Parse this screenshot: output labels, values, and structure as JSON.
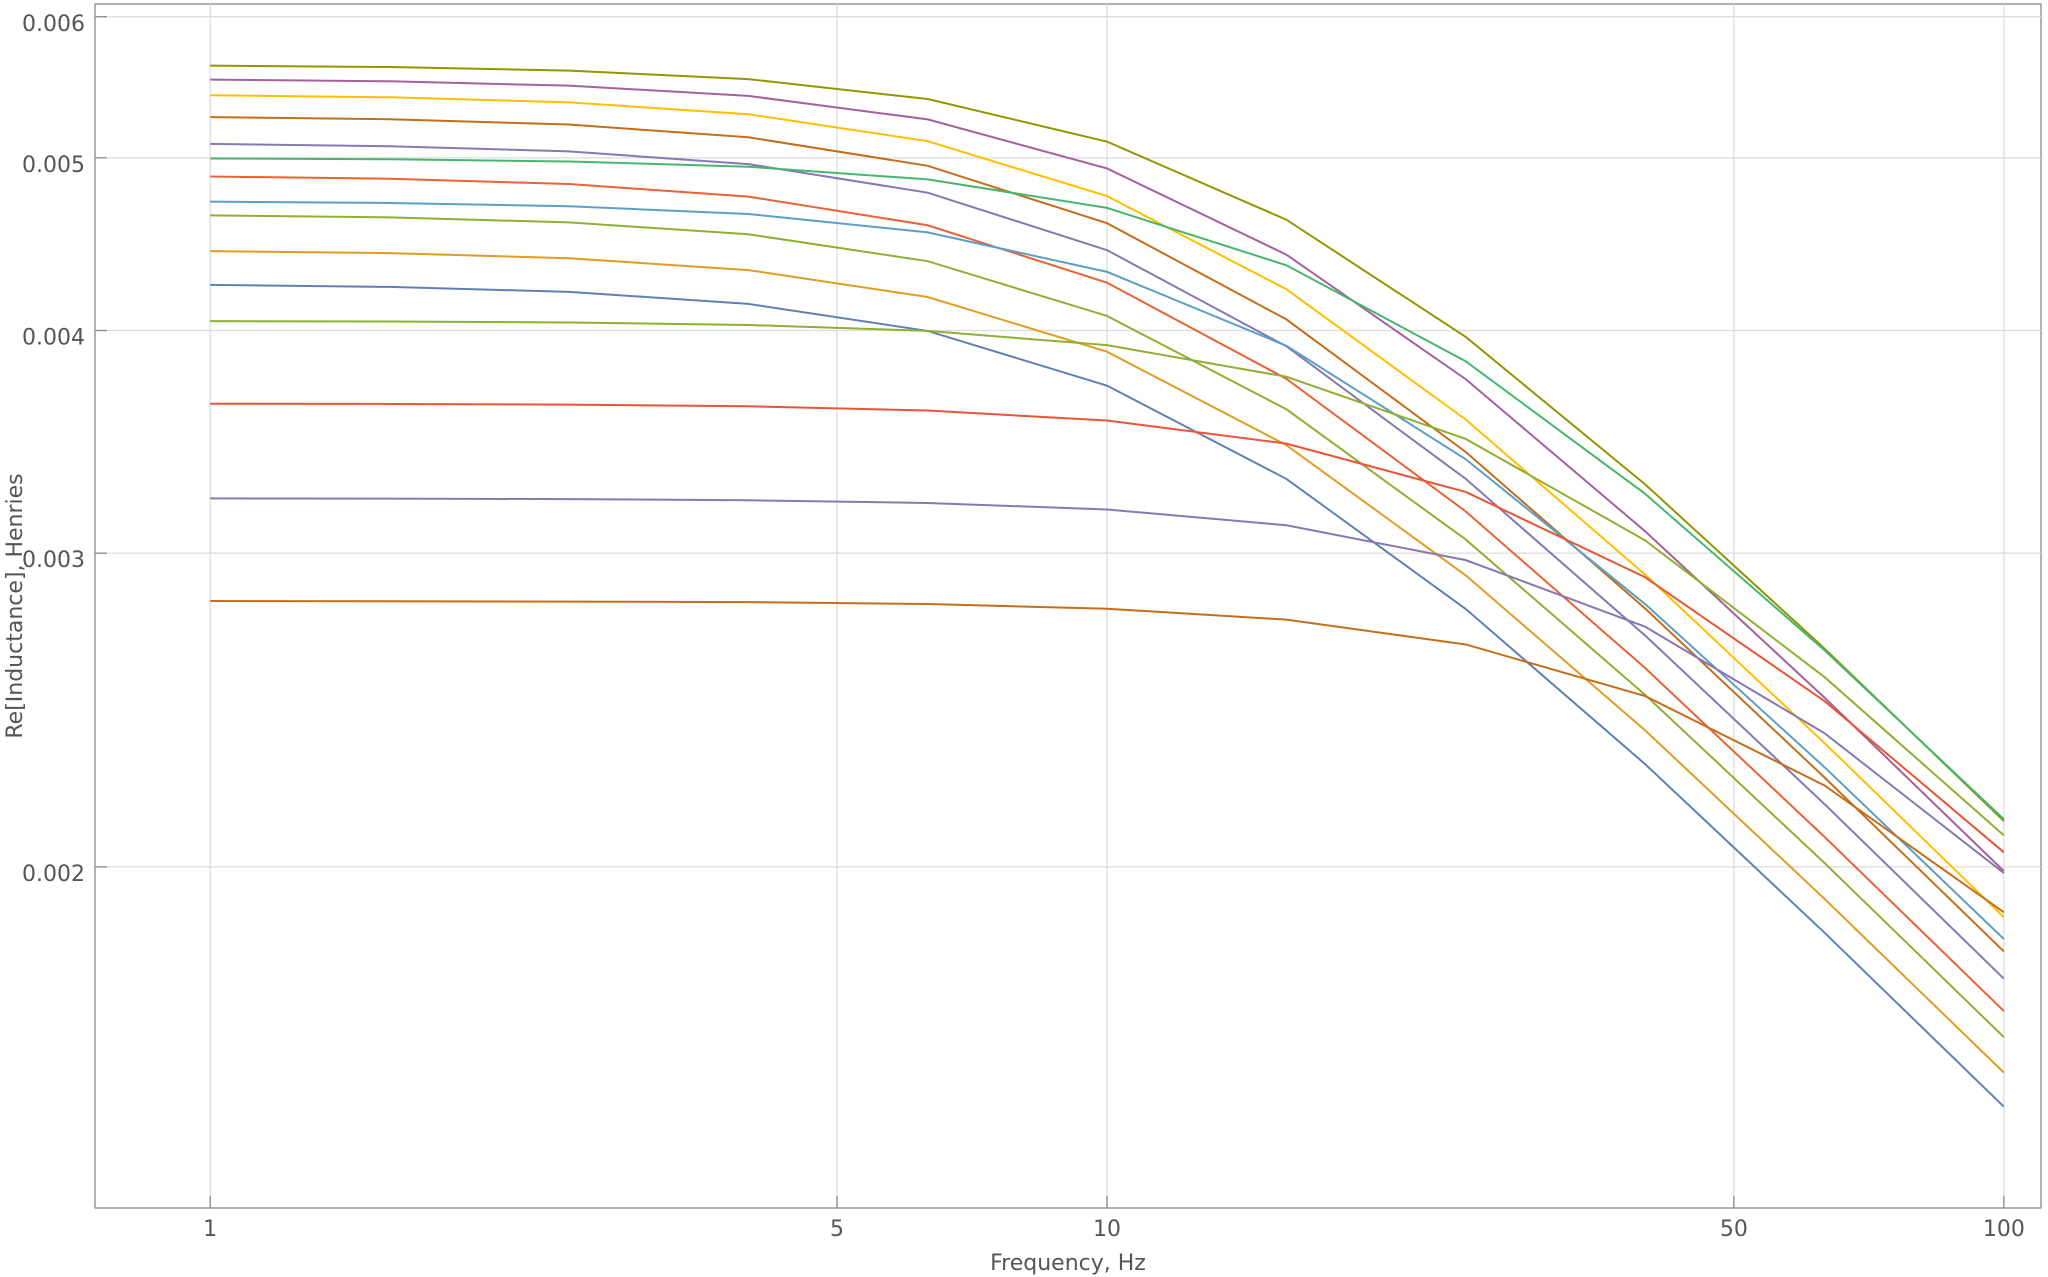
{
  "chart_data": {
    "type": "line",
    "xlabel": "Frequency, Hz",
    "ylabel": "Re[Inductance], Henries",
    "xscale": "log",
    "yscale": "log",
    "grid": true,
    "xlim": [
      0.744,
      110
    ],
    "ylim": [
      0.001287,
      0.0061
    ],
    "xticks": [
      1,
      5,
      10,
      50,
      100
    ],
    "yticks": [
      0.002,
      0.003,
      0.004,
      0.005,
      0.006
    ],
    "x": [
      1,
      1.585,
      2.512,
      3.981,
      6.31,
      10,
      15.85,
      25.12,
      39.81,
      63.1,
      100
    ],
    "series": [
      {
        "color": "#5E81B5",
        "values": [
          0.004243,
          0.004232,
          0.004205,
          0.00414,
          0.003998,
          0.003725,
          0.003302,
          0.002791,
          0.002284,
          0.001837,
          0.001467
        ]
      },
      {
        "color": "#E19C24",
        "values": [
          0.004432,
          0.004421,
          0.004392,
          0.004325,
          0.004177,
          0.003892,
          0.003449,
          0.002915,
          0.002386,
          0.001919,
          0.001533
        ]
      },
      {
        "color": "#8FB032",
        "values": [
          0.004642,
          0.00463,
          0.0046,
          0.00453,
          0.004375,
          0.004076,
          0.003613,
          0.003053,
          0.002498,
          0.00201,
          0.001605
        ]
      },
      {
        "color": "#EB6235",
        "values": [
          0.004881,
          0.004867,
          0.004834,
          0.004756,
          0.004583,
          0.004255,
          0.003758,
          0.003166,
          0.002586,
          0.002079,
          0.00166
        ]
      },
      {
        "color": "#8778B3",
        "values": [
          0.005091,
          0.005076,
          0.005042,
          0.00496,
          0.00478,
          0.004438,
          0.003919,
          0.003302,
          0.002697,
          0.002169,
          0.001731
        ]
      },
      {
        "color": "#C56E1A",
        "values": [
          0.00527,
          0.005256,
          0.00522,
          0.005135,
          0.004949,
          0.004595,
          0.004058,
          0.003419,
          0.002793,
          0.002245,
          0.001793
        ]
      },
      {
        "color": "#5D9EC7",
        "values": [
          0.004725,
          0.004717,
          0.004697,
          0.00465,
          0.004541,
          0.004315,
          0.003922,
          0.003387,
          0.002809,
          0.002275,
          0.001822
        ]
      },
      {
        "color": "#FFBF00",
        "values": [
          0.005421,
          0.005407,
          0.005372,
          0.00529,
          0.005109,
          0.004759,
          0.004219,
          0.003565,
          0.002918,
          0.002347,
          0.001874
        ]
      },
      {
        "color": "#A5609D",
        "values": [
          0.005532,
          0.00552,
          0.005489,
          0.005417,
          0.005255,
          0.004932,
          0.004412,
          0.003756,
          0.003086,
          0.002489,
          0.001989
        ]
      },
      {
        "color": "#929600",
        "values": [
          0.005633,
          0.005623,
          0.005597,
          0.005536,
          0.005395,
          0.005106,
          0.004616,
          0.003967,
          0.003279,
          0.002652,
          0.002122
        ]
      },
      {
        "color": "#47B66D",
        "values": [
          0.004996,
          0.004991,
          0.004977,
          0.004943,
          0.004863,
          0.004687,
          0.004352,
          0.003844,
          0.003239,
          0.002646,
          0.002127
        ]
      },
      {
        "color": "#8FB032",
        "values": [
          0.004049,
          0.004047,
          0.004042,
          0.004029,
          0.003998,
          0.003925,
          0.003768,
          0.003477,
          0.00305,
          0.002556,
          0.002083
        ]
      },
      {
        "color": "#E95536",
        "values": [
          0.003639,
          0.003638,
          0.003635,
          0.003627,
          0.003607,
          0.003561,
          0.003456,
          0.003247,
          0.002908,
          0.002478,
          0.002038
        ]
      },
      {
        "color": "#8778B3",
        "values": [
          0.00322,
          0.003219,
          0.003217,
          0.003212,
          0.003201,
          0.003174,
          0.00311,
          0.002973,
          0.002728,
          0.002377,
          0.001984
        ]
      },
      {
        "color": "#C56E1A",
        "values": [
          0.00282,
          0.002819,
          0.002818,
          0.002816,
          0.002809,
          0.002792,
          0.002753,
          0.002666,
          0.002494,
          0.002222,
          0.001886
        ]
      }
    ]
  }
}
